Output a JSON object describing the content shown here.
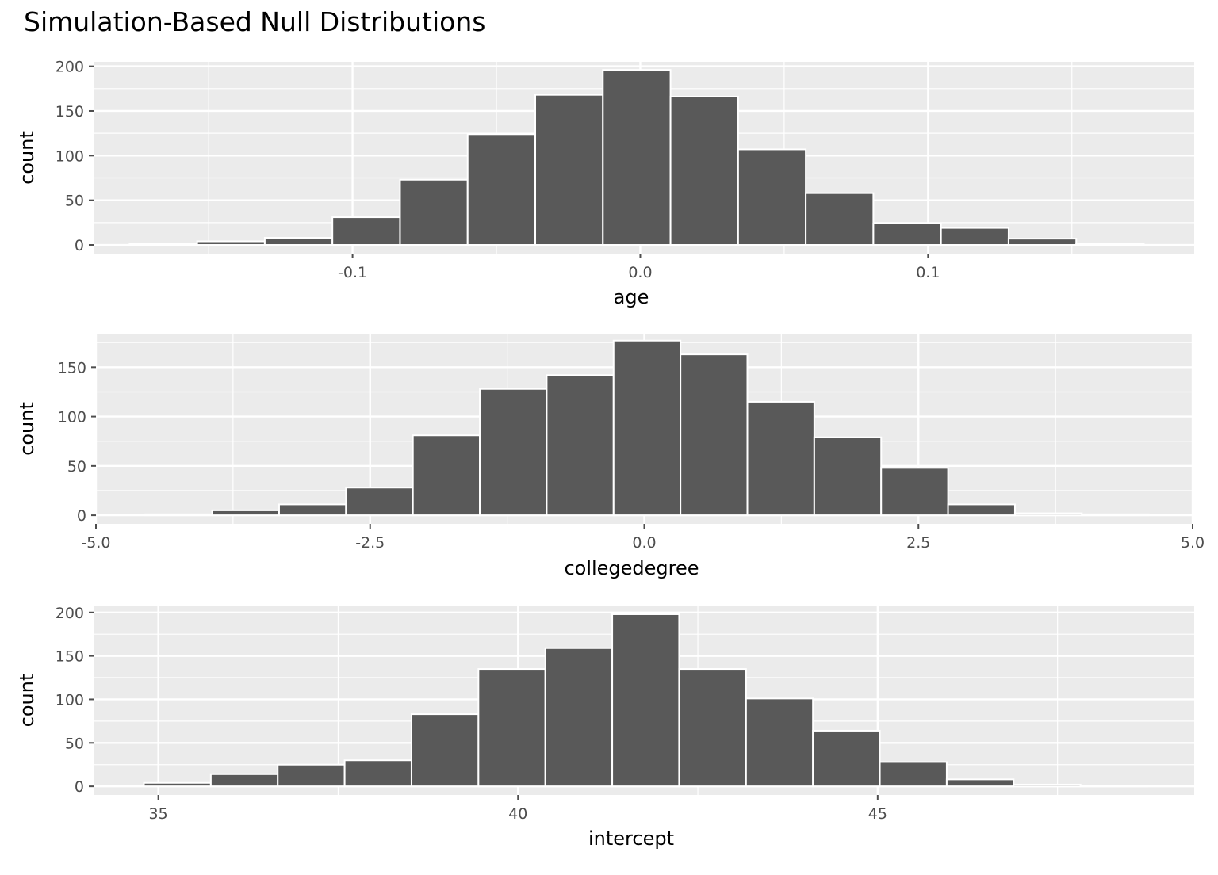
{
  "title": "Simulation-Based Null Distributions",
  "colors": {
    "panel": "#ebebeb",
    "grid": "#ffffff",
    "bar_fill": "#595959",
    "bar_stroke": "#ffffff",
    "tick": "#4d4d4d"
  },
  "chart_data": [
    {
      "type": "bar",
      "xlabel": "age",
      "ylabel": "count",
      "xlim": [
        -0.19,
        0.1925
      ],
      "ylim": [
        -9.75,
        205
      ],
      "xticks": [
        -0.1,
        0.0,
        0.1
      ],
      "xtick_labels": [
        "-0.1",
        "0.0",
        "0.1"
      ],
      "yticks": [
        0,
        50,
        100,
        150,
        200
      ],
      "ytick_labels": [
        "0",
        "50",
        "100",
        "150",
        "200"
      ],
      "bin_edges": [
        -0.1775,
        -0.154,
        -0.1305,
        -0.107,
        -0.0835,
        -0.06,
        -0.0365,
        -0.013,
        0.0105,
        0.034,
        0.0575,
        0.081,
        0.1045,
        0.128,
        0.1515,
        0.175
      ],
      "values": [
        1,
        4,
        8,
        31,
        73,
        124,
        168,
        196,
        166,
        107,
        58,
        24,
        19,
        7,
        1
      ],
      "grid": true
    },
    {
      "type": "bar",
      "xlabel": "collegedegree",
      "ylabel": "count",
      "xlim": [
        -5.0,
        5.0
      ],
      "ylim": [
        -8.75,
        184
      ],
      "xticks": [
        -5.0,
        -2.5,
        0.0,
        2.5,
        5.0
      ],
      "xtick_labels": [
        "-5.0",
        "-2.5",
        "0.0",
        "2.5",
        "5.0"
      ],
      "yticks": [
        0,
        50,
        100,
        150
      ],
      "ytick_labels": [
        "0",
        "50",
        "100",
        "150"
      ],
      "bin_edges": [
        -4.55,
        -3.94,
        -3.33,
        -2.72,
        -2.11,
        -1.5,
        -0.89,
        -0.28,
        0.33,
        0.94,
        1.55,
        2.16,
        2.77,
        3.38,
        3.99,
        4.6
      ],
      "values": [
        1,
        5,
        11,
        28,
        81,
        128,
        142,
        177,
        163,
        115,
        79,
        48,
        11,
        2,
        1
      ],
      "grid": true
    },
    {
      "type": "bar",
      "xlabel": "intercept",
      "ylabel": "count",
      "xlim": [
        34.1,
        49.4
      ],
      "ylim": [
        -9.9,
        208
      ],
      "xticks": [
        35,
        40,
        45
      ],
      "xtick_labels": [
        "35",
        "40",
        "45"
      ],
      "yticks": [
        0,
        50,
        100,
        150,
        200
      ],
      "ytick_labels": [
        "0",
        "50",
        "100",
        "150",
        "200"
      ],
      "bin_edges": [
        34.8,
        35.73,
        36.66,
        37.59,
        38.52,
        39.45,
        40.38,
        41.31,
        42.24,
        43.17,
        44.1,
        45.03,
        45.96,
        46.89,
        47.82,
        48.75
      ],
      "values": [
        4,
        14,
        25,
        30,
        83,
        135,
        159,
        198,
        135,
        101,
        64,
        28,
        8,
        2,
        1
      ],
      "grid": true
    }
  ]
}
